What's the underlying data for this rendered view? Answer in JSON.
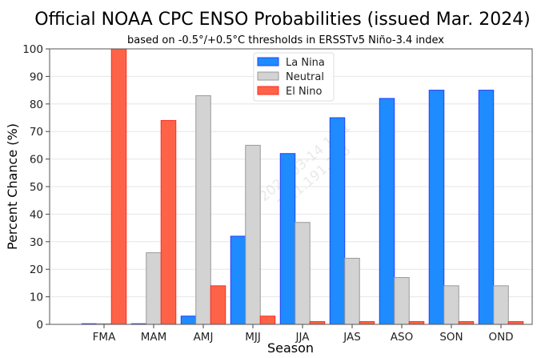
{
  "chart_data": {
    "type": "bar",
    "title": "Official NOAA CPC ENSO Probabilities (issued Mar. 2024)",
    "subtitle": "based on -0.5°/+0.5°C thresholds in ERSSTv5 Niño-3.4 index",
    "xlabel": "Season",
    "ylabel": "Percent Chance (%)",
    "ylim": [
      0,
      100
    ],
    "yticks": [
      0,
      10,
      20,
      30,
      40,
      50,
      60,
      70,
      80,
      90,
      100
    ],
    "grid": true,
    "legend_position": "top-center",
    "categories": [
      "FMA",
      "MAM",
      "AMJ",
      "MJJ",
      "JJA",
      "JAS",
      "ASO",
      "SON",
      "OND"
    ],
    "series": [
      {
        "name": "La Nina",
        "color": "#1e8cff",
        "edge": "#2a3cff",
        "values": [
          0,
          0,
          3,
          32,
          62,
          75,
          82,
          85,
          85
        ]
      },
      {
        "name": "Neutral",
        "color": "#d3d3d3",
        "edge": "#9a9a9a",
        "values": [
          0,
          26,
          83,
          65,
          37,
          24,
          17,
          14,
          14
        ]
      },
      {
        "name": "El Nino",
        "color": "#ff6347",
        "edge": "#ff2a20",
        "values": [
          100,
          74,
          14,
          3,
          1,
          1,
          1,
          1,
          1
        ]
      }
    ],
    "watermark": [
      "2024-03-14 16:1",
      "10.1.191.118"
    ]
  }
}
